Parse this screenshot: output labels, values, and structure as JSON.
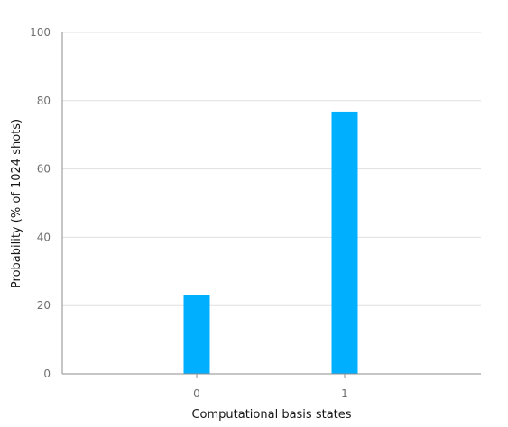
{
  "chart_data": {
    "type": "bar",
    "categories": [
      "0",
      "1"
    ],
    "values": [
      23.1,
      76.8
    ],
    "xlabel": "Computational basis states",
    "ylabel": "Probability (% of 1024 shots)",
    "ylim": [
      0,
      100
    ],
    "yticks": [
      "0",
      "20",
      "40",
      "60",
      "80",
      "100"
    ],
    "grid": true,
    "bar_color": "#00b0ff"
  }
}
